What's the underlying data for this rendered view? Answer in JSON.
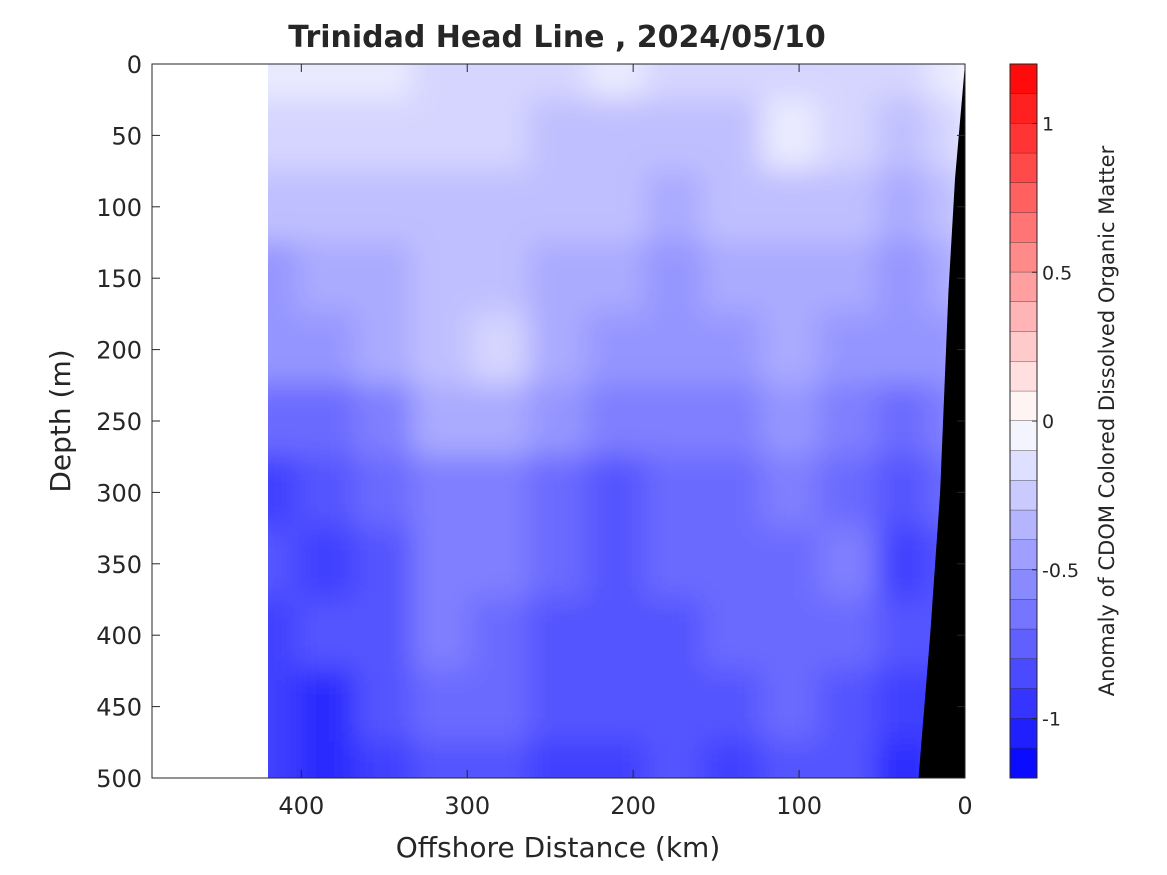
{
  "chart_data": {
    "type": "heatmap",
    "title": "Trinidad Head Line , 2024/05/10",
    "xlabel": "Offshore Distance (km)",
    "ylabel": "Depth (m)",
    "xlim": [
      490,
      0
    ],
    "ylim": [
      500,
      0
    ],
    "x_reversed": true,
    "y_reversed": true,
    "xticks": [
      400,
      300,
      200,
      100,
      0
    ],
    "yticks": [
      0,
      50,
      100,
      150,
      200,
      250,
      300,
      350,
      400,
      450,
      500
    ],
    "xtick_labels": [
      "400",
      "300",
      "200",
      "100",
      "0"
    ],
    "ytick_labels": [
      "0",
      "50",
      "100",
      "150",
      "200",
      "250",
      "300",
      "350",
      "400",
      "450",
      "500"
    ],
    "data_extent_km": [
      420,
      0
    ],
    "value_grid": {
      "x_km": [
        420,
        385,
        350,
        315,
        280,
        245,
        210,
        175,
        140,
        105,
        70,
        35,
        10
      ],
      "depth_m": [
        0,
        50,
        100,
        150,
        200,
        250,
        300,
        350,
        400,
        450,
        500
      ],
      "values": [
        [
          -0.15,
          -0.15,
          -0.15,
          -0.2,
          -0.2,
          -0.2,
          -0.15,
          -0.2,
          -0.25,
          -0.2,
          -0.2,
          -0.2,
          -0.15
        ],
        [
          -0.25,
          -0.2,
          -0.25,
          -0.2,
          -0.25,
          -0.3,
          -0.3,
          -0.35,
          -0.3,
          -0.15,
          -0.2,
          -0.3,
          -0.2
        ],
        [
          -0.35,
          -0.3,
          -0.35,
          -0.3,
          -0.3,
          -0.35,
          -0.35,
          -0.4,
          -0.35,
          -0.3,
          -0.3,
          -0.4,
          -0.3
        ],
        [
          -0.5,
          -0.45,
          -0.4,
          -0.35,
          -0.3,
          -0.4,
          -0.45,
          -0.5,
          -0.45,
          -0.4,
          -0.4,
          -0.5,
          -0.4
        ],
        [
          -0.55,
          -0.55,
          -0.45,
          -0.3,
          -0.25,
          -0.4,
          -0.5,
          -0.55,
          -0.5,
          -0.45,
          -0.5,
          -0.55,
          -0.5
        ],
        [
          -0.75,
          -0.7,
          -0.6,
          -0.45,
          -0.45,
          -0.55,
          -0.65,
          -0.6,
          -0.6,
          -0.55,
          -0.6,
          -0.7,
          -0.6
        ],
        [
          -0.9,
          -0.85,
          -0.75,
          -0.6,
          -0.6,
          -0.7,
          -0.8,
          -0.75,
          -0.7,
          -0.65,
          -0.7,
          -0.8,
          -0.75
        ],
        [
          -0.85,
          -0.9,
          -0.8,
          -0.6,
          -0.65,
          -0.75,
          -0.85,
          -0.7,
          -0.75,
          -0.7,
          -0.65,
          -0.95,
          -0.8
        ],
        [
          -0.9,
          -0.85,
          -0.8,
          -0.65,
          -0.7,
          -0.8,
          -0.8,
          -0.85,
          -0.75,
          -0.7,
          -0.75,
          -0.85,
          -0.85
        ],
        [
          -0.9,
          -1.0,
          -0.85,
          -0.7,
          -0.75,
          -0.8,
          -0.85,
          -0.8,
          -0.85,
          -0.75,
          -0.8,
          -0.95,
          -0.9
        ],
        [
          -0.95,
          -1.0,
          -0.9,
          -0.8,
          -0.8,
          -0.9,
          -0.95,
          -0.85,
          -0.9,
          -0.85,
          -0.85,
          -1.05,
          -0.95
        ]
      ]
    },
    "bathymetry": {
      "color": "#000000",
      "points_km_m": [
        [
          0,
          0
        ],
        [
          6,
          80
        ],
        [
          10,
          160
        ],
        [
          15,
          300
        ],
        [
          21,
          400
        ],
        [
          28,
          500
        ]
      ]
    },
    "colorbar": {
      "label": "Anomaly of CDOM Colored Dissolved Organic Matter",
      "clim": [
        -1.2,
        1.2
      ],
      "step": 0.1,
      "ticks": [
        1,
        0.5,
        0,
        -0.5,
        -1
      ],
      "tick_labels": [
        "1",
        "0.5",
        "0",
        "-0.5",
        "-1"
      ],
      "colormap": "blue-white-red",
      "negative_end_color": "#0000ff",
      "zero_color": "#ffffff",
      "positive_end_color": "#ff0000"
    },
    "grid": false,
    "legend": "none"
  }
}
